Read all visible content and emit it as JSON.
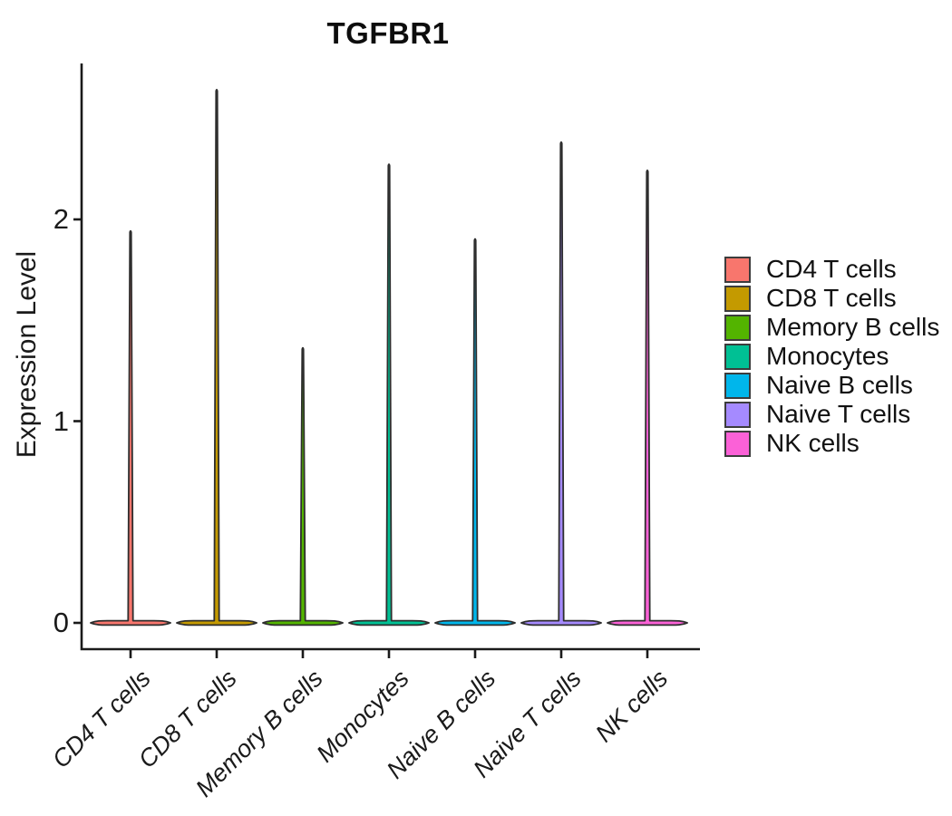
{
  "chart_data": {
    "type": "violin",
    "title": "TGFBR1",
    "xlabel": "",
    "ylabel": "Expression Level",
    "categories": [
      "CD4 T cells",
      "CD8 T cells",
      "Memory B cells",
      "Monocytes",
      "Naive B cells",
      "Naive T cells",
      "NK cells"
    ],
    "series": [
      {
        "name": "CD4 T cells",
        "color": "#F8766D",
        "max_expression": 1.95,
        "mode_expression": 0
      },
      {
        "name": "CD8 T cells",
        "color": "#C49A00",
        "max_expression": 2.65,
        "mode_expression": 0
      },
      {
        "name": "Memory B cells",
        "color": "#53B400",
        "max_expression": 1.37,
        "mode_expression": 0
      },
      {
        "name": "Monocytes",
        "color": "#00C094",
        "max_expression": 2.28,
        "mode_expression": 0
      },
      {
        "name": "Naive B cells",
        "color": "#00B6EB",
        "max_expression": 1.91,
        "mode_expression": 0
      },
      {
        "name": "Naive T cells",
        "color": "#A58AFF",
        "max_expression": 2.39,
        "mode_expression": 0
      },
      {
        "name": "NK cells",
        "color": "#FB61D7",
        "max_expression": 2.25,
        "mode_expression": 0
      }
    ],
    "y_ticks": [
      "0",
      "1",
      "2"
    ],
    "y_tick_values": [
      0,
      1,
      2
    ],
    "ylim": [
      -0.13,
      2.77
    ],
    "grid": false,
    "legend_position": "right",
    "x_tick_angle": -45,
    "distribution_note": "Each violin collapses to a wide flat mass at expression 0 with a single thin spike up to the maximum expression value",
    "colors": {
      "axis": "#1a1a1a",
      "violin_outline": "#2e2e2e",
      "text": "#1a1a1a"
    }
  }
}
